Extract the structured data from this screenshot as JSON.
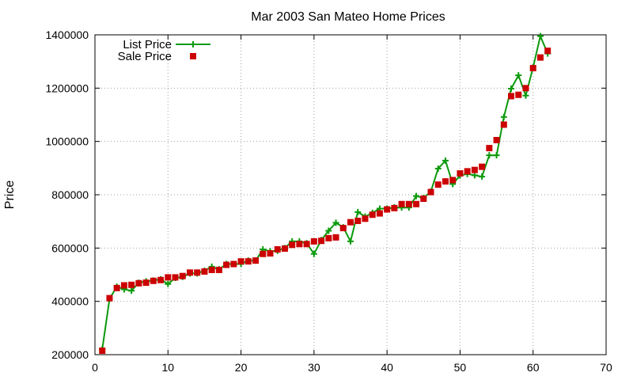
{
  "chart_data": {
    "type": "line",
    "title": "Mar 2003 San Mateo Home Prices",
    "xlabel": "",
    "ylabel": "Price",
    "xlim": [
      0,
      70
    ],
    "ylim": [
      200000,
      1400000
    ],
    "xticks": [
      0,
      10,
      20,
      30,
      40,
      50,
      60,
      70
    ],
    "yticks": [
      200000,
      400000,
      600000,
      800000,
      1000000,
      1200000,
      1400000
    ],
    "grid": true,
    "legend_position": "top-left",
    "colors": {
      "list": "#0b9a0b",
      "sale": "#cc0000"
    },
    "series": [
      {
        "name": "List Price",
        "style": "line-with-plus-markers",
        "x": [
          1,
          2,
          3,
          4,
          5,
          6,
          7,
          8,
          9,
          10,
          11,
          12,
          13,
          14,
          15,
          16,
          17,
          18,
          19,
          20,
          21,
          22,
          23,
          24,
          25,
          26,
          27,
          28,
          29,
          30,
          31,
          32,
          33,
          34,
          35,
          36,
          37,
          38,
          39,
          40,
          41,
          42,
          43,
          44,
          45,
          46,
          47,
          48,
          49,
          50,
          51,
          52,
          53,
          54,
          55,
          56,
          57,
          58,
          59,
          60,
          61,
          62
        ],
        "values": [
          220000,
          410000,
          455000,
          445000,
          440000,
          470000,
          475000,
          478000,
          483000,
          465000,
          488000,
          492000,
          505000,
          505000,
          515000,
          530000,
          520000,
          540000,
          540000,
          540000,
          553000,
          553000,
          595000,
          588000,
          590000,
          600000,
          625000,
          625000,
          618000,
          578000,
          630000,
          665000,
          695000,
          678000,
          625000,
          735000,
          718000,
          732000,
          748000,
          748000,
          752000,
          752000,
          752000,
          795000,
          788000,
          812000,
          898000,
          928000,
          840000,
          872000,
          878000,
          873000,
          868000,
          948000,
          948000,
          1092000,
          1198000,
          1248000,
          1172000,
          1278000,
          1395000,
          1330000
        ]
      },
      {
        "name": "Sale Price",
        "style": "square-markers",
        "x": [
          1,
          2,
          3,
          4,
          5,
          6,
          7,
          8,
          9,
          10,
          11,
          12,
          13,
          14,
          15,
          16,
          17,
          18,
          19,
          20,
          21,
          22,
          23,
          24,
          25,
          26,
          27,
          28,
          29,
          30,
          31,
          32,
          33,
          34,
          35,
          36,
          37,
          38,
          39,
          40,
          41,
          42,
          43,
          44,
          45,
          46,
          47,
          48,
          49,
          50,
          51,
          52,
          53,
          54,
          55,
          56,
          57,
          58,
          59,
          60,
          61,
          62
        ],
        "values": [
          215000,
          412000,
          450000,
          460000,
          462000,
          468000,
          470000,
          477000,
          480000,
          490000,
          490000,
          495000,
          508000,
          508000,
          512000,
          518000,
          518000,
          537000,
          540000,
          550000,
          550000,
          553000,
          578000,
          580000,
          595000,
          598000,
          612000,
          615000,
          615000,
          625000,
          627000,
          637000,
          640000,
          675000,
          697000,
          702000,
          710000,
          725000,
          730000,
          745000,
          750000,
          765000,
          765000,
          765000,
          785000,
          810000,
          838000,
          850000,
          855000,
          880000,
          888000,
          893000,
          905000,
          975000,
          1005000,
          1063000,
          1170000,
          1175000,
          1200000,
          1275000,
          1315000,
          1340000
        ]
      }
    ]
  }
}
